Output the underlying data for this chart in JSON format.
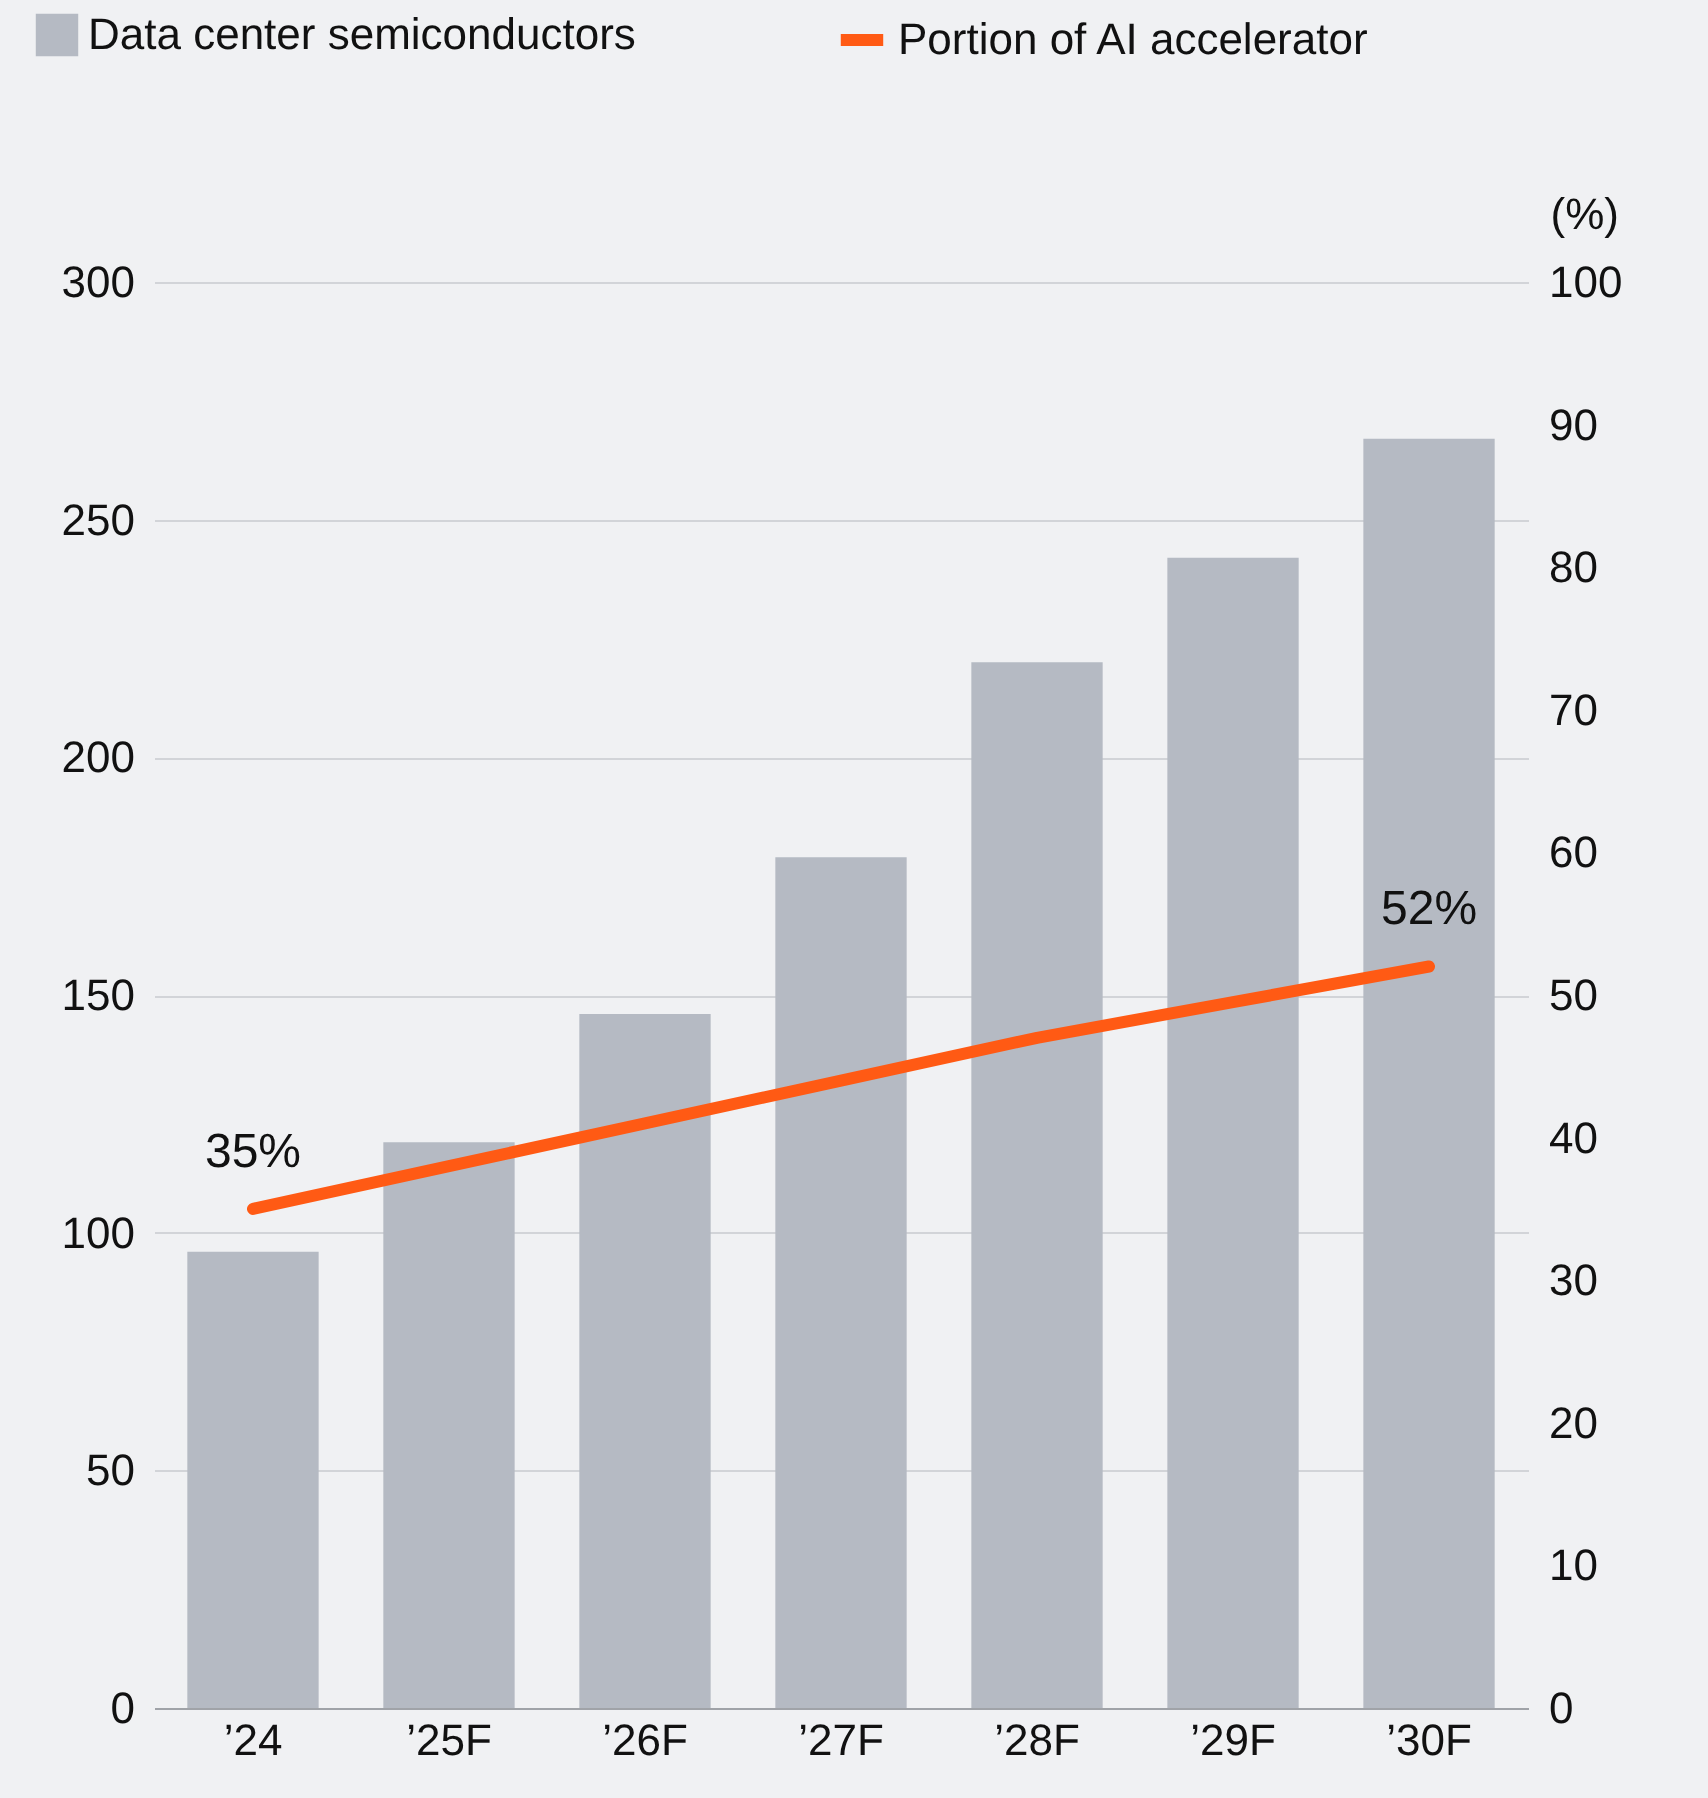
{
  "chart_data": {
    "type": "bar",
    "categories": [
      "’24",
      "’25F",
      "’26F",
      "’27F",
      "’28F",
      "’29F",
      "’30F"
    ],
    "series": [
      {
        "name": "Data center semiconductors",
        "type": "bar",
        "color": "#b5bac3",
        "values": [
          96,
          119,
          146,
          179,
          220,
          242,
          267
        ]
      },
      {
        "name": "Portion of AI accelerator",
        "type": "line",
        "axis": "y2",
        "color": "#ff5a14",
        "values": [
          35,
          38,
          41,
          44,
          47,
          49.5,
          52
        ],
        "value_labels": [
          "35%",
          null,
          null,
          null,
          null,
          null,
          "52%"
        ]
      }
    ],
    "ylim": [
      0,
      300
    ],
    "yticks": [
      0,
      50,
      100,
      150,
      200,
      250,
      300
    ],
    "y2lim": [
      0,
      100
    ],
    "y2ticks": [
      0,
      10,
      20,
      30,
      40,
      50,
      60,
      70,
      80,
      90,
      100
    ],
    "y2label": "(%)",
    "grid": "y",
    "legend": "top left",
    "marker": "none",
    "line_style": "solid"
  }
}
